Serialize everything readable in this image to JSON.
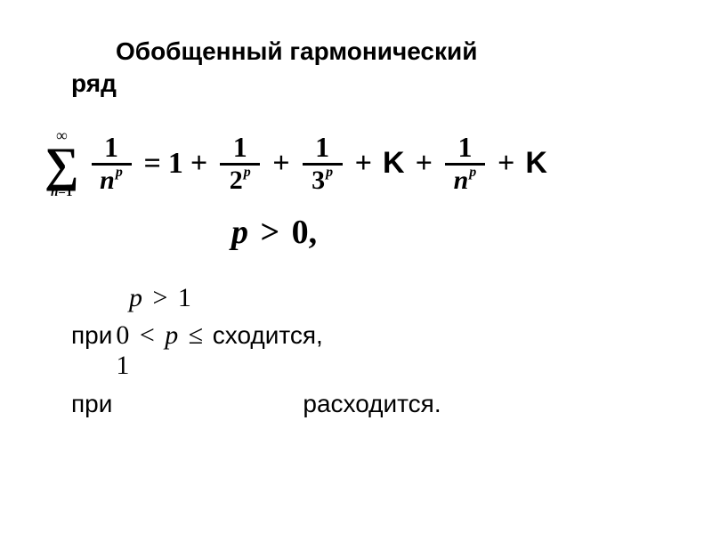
{
  "title": {
    "line1": "Обобщенный гармонический",
    "line2": "ряд"
  },
  "formula": {
    "sigma": {
      "top": "∞",
      "symbol": "∑",
      "bottom_var": "n",
      "bottom_eq": "=",
      "bottom_val": "1"
    },
    "frac1": {
      "num": "1",
      "den_base": "n",
      "den_exp": "p"
    },
    "eq": "=",
    "term1": "1",
    "plus": "+",
    "frac2": {
      "num": "1",
      "den_base": "2",
      "den_exp": "p"
    },
    "frac3": {
      "num": "1",
      "den_base": "3",
      "den_exp": "p"
    },
    "k": "K",
    "frac4": {
      "num": "1",
      "den_base": "n",
      "den_exp": "p"
    }
  },
  "condition_main": {
    "var": "p",
    "op": ">",
    "val": "0,",
    "text_colors": "#000000"
  },
  "p1": {
    "var": "p",
    "op": ">",
    "val": "1"
  },
  "line1": {
    "pri": "при",
    "zero": "0",
    "lt": "<",
    "p": "p",
    "le": "≤",
    "one": "1",
    "word": "сходится,"
  },
  "line2": {
    "pri": "при",
    "word": "расходится."
  },
  "style": {
    "background_color": "#ffffff",
    "text_color": "#000000",
    "title_fontsize": 28,
    "formula_fontsize": 34,
    "cond_fontsize": 38,
    "body_fontsize": 28,
    "math_font": "Times New Roman",
    "sans_font": "Arial"
  }
}
